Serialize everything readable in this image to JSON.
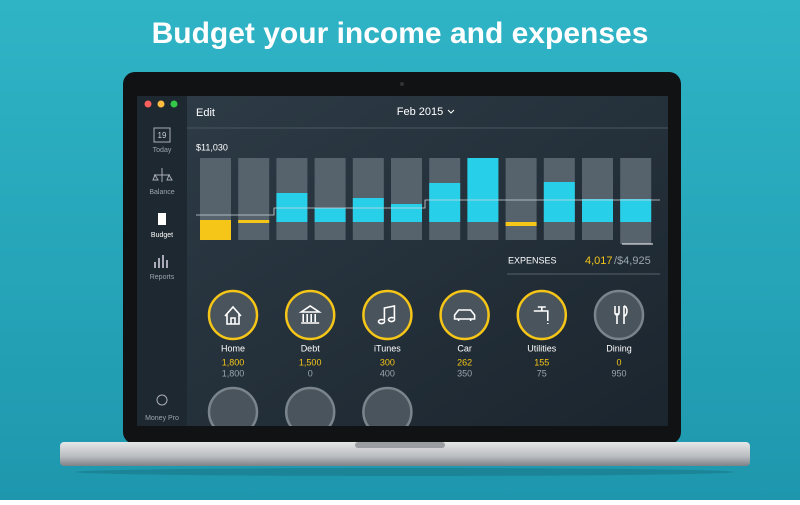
{
  "headline": "Budget your income and expenses",
  "sidebar": [
    {
      "icon_text": "19",
      "label": "Today"
    },
    {
      "label": "Balance"
    },
    {
      "label": "Budget"
    },
    {
      "label": "Reports"
    }
  ],
  "account": "Money Pro",
  "toolbar": {
    "edit": "Edit",
    "month": "Feb 2015"
  },
  "chart": {
    "max_label": "$11,030"
  },
  "expenses": {
    "label": "EXPENSES",
    "spent": "4,017",
    "budget": "/$4,925"
  },
  "categories": [
    {
      "name": "Home",
      "spent": "1,800",
      "budget": "1,800"
    },
    {
      "name": "Debt",
      "spent": "1,500",
      "budget": "0"
    },
    {
      "name": "iTunes",
      "spent": "300",
      "budget": "400"
    },
    {
      "name": "Car",
      "spent": "262",
      "budget": "350"
    },
    {
      "name": "Utilities",
      "spent": "155",
      "budget": "75"
    },
    {
      "name": "Dining",
      "spent": "0",
      "budget": "950"
    }
  ]
}
